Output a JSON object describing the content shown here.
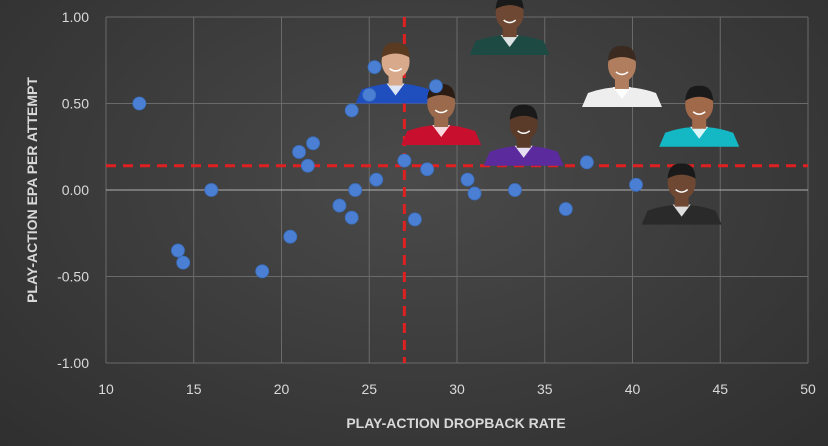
{
  "chart_data": {
    "type": "scatter",
    "title": "",
    "xlabel": "PLAY-ACTION DROPBACK RATE",
    "ylabel": "PLAY-ACTION EPA PER ATTEMPT",
    "xlim": [
      10,
      50
    ],
    "ylim": [
      -1.0,
      1.0
    ],
    "xticks": [
      "10",
      "15",
      "20",
      "25",
      "30",
      "35",
      "40",
      "45",
      "50"
    ],
    "yticks": [
      "1.00",
      "0.50",
      "0.00",
      "-0.50",
      "-1.00"
    ],
    "grid": true,
    "reference_lines": {
      "x": 27,
      "y": 0.14
    },
    "colors": {
      "point": "#4a7fd4",
      "reference": "#e02020",
      "grid": "#6a6a6a",
      "zero": "#b0b0b0"
    },
    "points": [
      {
        "x": 11.9,
        "y": 0.5
      },
      {
        "x": 14.1,
        "y": -0.35
      },
      {
        "x": 14.4,
        "y": -0.42
      },
      {
        "x": 16.0,
        "y": 0.0
      },
      {
        "x": 18.9,
        "y": -0.47
      },
      {
        "x": 20.5,
        "y": -0.27
      },
      {
        "x": 21.0,
        "y": 0.22
      },
      {
        "x": 21.5,
        "y": 0.14
      },
      {
        "x": 21.8,
        "y": 0.27
      },
      {
        "x": 23.3,
        "y": -0.09
      },
      {
        "x": 24.0,
        "y": -0.16
      },
      {
        "x": 24.2,
        "y": 0.0
      },
      {
        "x": 24.0,
        "y": 0.46
      },
      {
        "x": 25.4,
        "y": 0.06
      },
      {
        "x": 25.3,
        "y": 0.71
      },
      {
        "x": 25.0,
        "y": 0.55
      },
      {
        "x": 27.0,
        "y": 0.17
      },
      {
        "x": 27.6,
        "y": -0.17
      },
      {
        "x": 28.3,
        "y": 0.12
      },
      {
        "x": 28.8,
        "y": 0.6
      },
      {
        "x": 30.6,
        "y": 0.06
      },
      {
        "x": 31.0,
        "y": -0.02
      },
      {
        "x": 33.3,
        "y": 0.0
      },
      {
        "x": 36.2,
        "y": -0.11
      },
      {
        "x": 37.4,
        "y": 0.16
      },
      {
        "x": 40.2,
        "y": 0.03
      }
    ],
    "annotations": [
      {
        "label": "player-headshot-buffalo",
        "x": 26.5,
        "y": 0.5,
        "jersey": "#1f4fbf",
        "skin": "#d8a98a",
        "hair": "#5a3b22"
      },
      {
        "label": "player-headshot-kansas-city",
        "x": 29.1,
        "y": 0.26,
        "jersey": "#c8102e",
        "skin": "#9b6a4c",
        "hair": "#2b1d14"
      },
      {
        "label": "player-headshot-philadelphia",
        "x": 33.0,
        "y": 0.78,
        "jersey": "#1e4a44",
        "skin": "#6e4832",
        "hair": "#1a1a1a"
      },
      {
        "label": "player-headshot-baltimore",
        "x": 33.8,
        "y": 0.14,
        "jersey": "#5b2b9e",
        "skin": "#5a3a28",
        "hair": "#1a1a1a"
      },
      {
        "label": "player-headshot-dallas",
        "x": 39.4,
        "y": 0.48,
        "jersey": "#eeeeee",
        "skin": "#b07d5e",
        "hair": "#3a2a20"
      },
      {
        "label": "player-headshot-miami",
        "x": 43.8,
        "y": 0.25,
        "jersey": "#14b8c4",
        "skin": "#a0694a",
        "hair": "#1a1a1a"
      },
      {
        "label": "player-headshot-detroit",
        "x": 42.8,
        "y": -0.2,
        "jersey": "#2a2a2a",
        "skin": "#6e4832",
        "hair": "#1a1a1a"
      }
    ]
  }
}
